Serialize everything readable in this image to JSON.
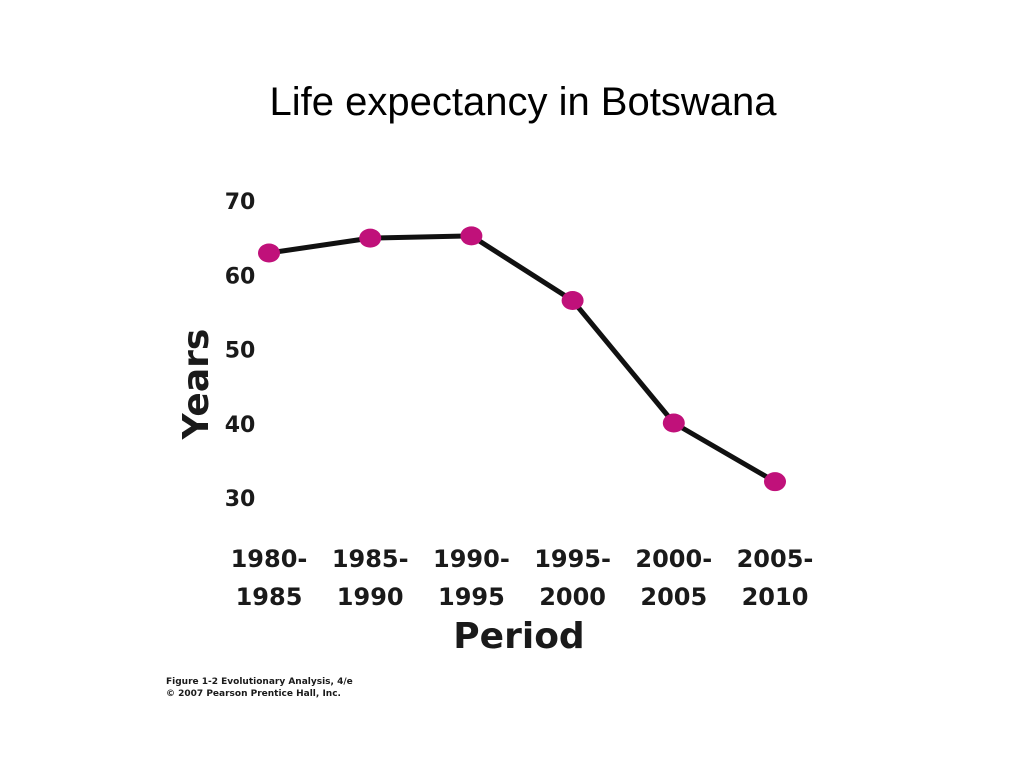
{
  "slide_title": "Life expectancy in Botswana",
  "caption": {
    "line1": "Figure 1-2  Evolutionary Analysis, 4/e",
    "line2": "© 2007 Pearson Prentice Hall, Inc."
  },
  "colors": {
    "line": "#111111",
    "marker": "#c0117a",
    "text": "#1a1a1a"
  },
  "chart_data": {
    "type": "line",
    "title": "Life expectancy in Botswana",
    "xlabel": "Period",
    "ylabel": "Years",
    "categories": [
      [
        "1980-",
        "1985"
      ],
      [
        "1985-",
        "1990"
      ],
      [
        "1990-",
        "1995"
      ],
      [
        "1995-",
        "2000"
      ],
      [
        "2000-",
        "2005"
      ],
      [
        "2005-",
        "2010"
      ]
    ],
    "y_ticks": [
      70,
      60,
      50,
      40,
      30
    ],
    "ylim": [
      30,
      70
    ],
    "values": [
      63,
      65,
      65.3,
      56.6,
      40.1,
      32.2
    ],
    "grid": false,
    "legend": "none"
  }
}
